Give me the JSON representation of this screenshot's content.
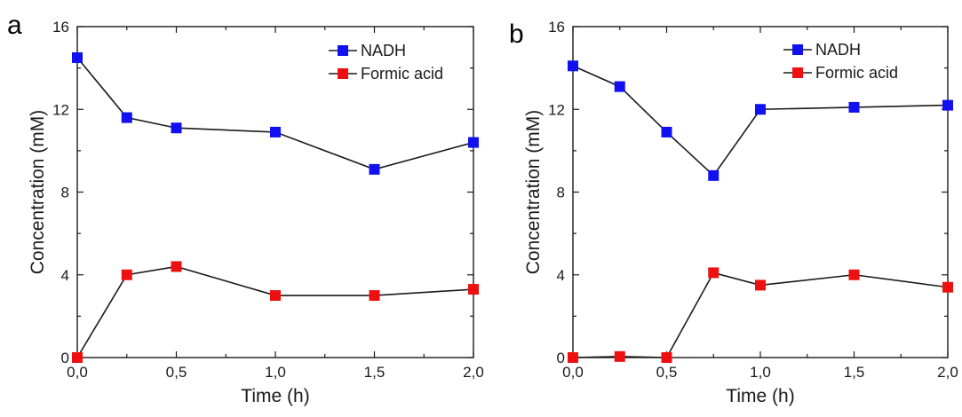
{
  "chart_data": [
    {
      "type": "line",
      "panel_label": "a",
      "xlabel": "Time (h)",
      "ylabel": "Concentration (mM)",
      "xlim": [
        0,
        2
      ],
      "ylim": [
        0,
        16
      ],
      "x_ticks": [
        "0,0",
        "0,5",
        "1,0",
        "1,5",
        "2,0"
      ],
      "y_ticks": [
        "0",
        "4",
        "8",
        "12",
        "16"
      ],
      "legend_position": "top-right",
      "series": [
        {
          "name": "NADH",
          "color": "#1010f0",
          "marker": "square",
          "x": [
            0,
            0.25,
            0.5,
            1.0,
            1.5,
            2.0
          ],
          "y": [
            14.5,
            11.6,
            11.1,
            10.9,
            9.1,
            10.4
          ]
        },
        {
          "name": "Formic acid",
          "color": "#ee1010",
          "marker": "square",
          "x": [
            0,
            0.25,
            0.5,
            1.0,
            1.5,
            2.0
          ],
          "y": [
            0.0,
            4.0,
            4.4,
            3.0,
            3.0,
            3.3
          ]
        }
      ]
    },
    {
      "type": "line",
      "panel_label": "b",
      "xlabel": "Time (h)",
      "ylabel": "Concentration (mM)",
      "xlim": [
        0,
        2
      ],
      "ylim": [
        0,
        16
      ],
      "x_ticks": [
        "0,0",
        "0,5",
        "1,0",
        "1,5",
        "2,0"
      ],
      "y_ticks": [
        "0",
        "4",
        "8",
        "12",
        "16"
      ],
      "legend_position": "top-right",
      "series": [
        {
          "name": "NADH",
          "color": "#1010f0",
          "marker": "square",
          "x": [
            0,
            0.25,
            0.5,
            0.75,
            1.0,
            1.5,
            2.0
          ],
          "y": [
            14.1,
            13.1,
            10.9,
            8.8,
            12.0,
            12.1,
            12.2
          ]
        },
        {
          "name": "Formic acid",
          "color": "#ee1010",
          "marker": "square",
          "x": [
            0,
            0.25,
            0.5,
            0.75,
            1.0,
            1.5,
            2.0
          ],
          "y": [
            0.0,
            0.05,
            0.0,
            4.1,
            3.5,
            4.0,
            3.4
          ]
        }
      ]
    }
  ]
}
